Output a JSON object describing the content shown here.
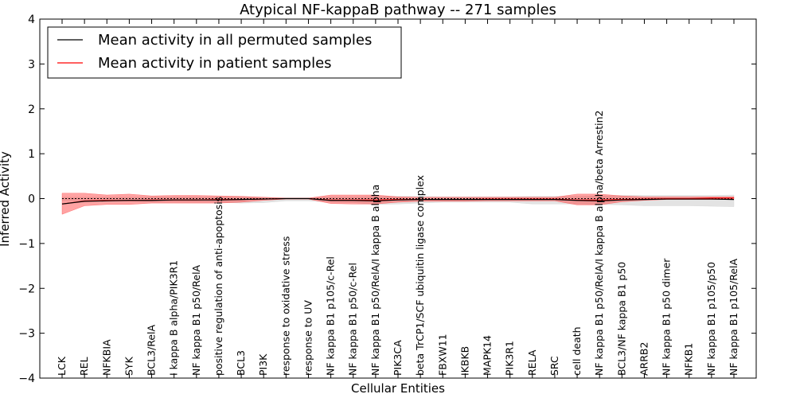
{
  "chart_data": {
    "type": "line",
    "title": "Atypical NF-kappaB pathway -- 271 samples",
    "xlabel": "Cellular Entities",
    "ylabel": "Inferred Activity",
    "ylim": [
      -4,
      4
    ],
    "yticks": [
      -4,
      -3,
      -2,
      -1,
      0,
      1,
      2,
      3,
      4
    ],
    "ytick_labels": [
      "−4",
      "−3",
      "−2",
      "−1",
      "0",
      "1",
      "2",
      "3",
      "4"
    ],
    "grid": false,
    "legend_position": "top-left",
    "categories": [
      "LCK",
      "REL",
      "NFKBIA",
      "SYK",
      "BCL3/RelA",
      "I kappa B alpha/PIK3R1",
      "NF kappa B1 p50/RelA",
      "positive regulation of anti-apoptosis",
      "BCL3",
      "PI3K",
      "response to oxidative stress",
      "response to UV",
      "NF kappa B1 p105/c-Rel",
      "NF kappa B1 p50/c-Rel",
      "NF kappa B1 p50/RelA/I kappa B alpha",
      "PIK3CA",
      "beta TrCP1/SCF ubiquitin ligase complex",
      "FBXW11",
      "IKBKB",
      "MAPK14",
      "PIK3R1",
      "RELA",
      "SRC",
      "cell death",
      "NF kappa B1 p50/RelA/I kappa B alpha/beta Arrestin2",
      "BCL3/NF kappa B1 p50",
      "ARRB2",
      "NF kappa B1 p50 dimer",
      "NFKB1",
      "NF kappa B1 p105/p50",
      "NF kappa B1 p105/RelA"
    ],
    "series": [
      {
        "name": "Mean activity in all permuted samples",
        "color": "#000000",
        "values": [
          0,
          0,
          0,
          0,
          0,
          0,
          0,
          0,
          0,
          0,
          0,
          0,
          0,
          0,
          0,
          0,
          0,
          0,
          0,
          0,
          0,
          0,
          0,
          0,
          0,
          0,
          0,
          0,
          0,
          0,
          0
        ],
        "band_upper": [
          0.03,
          0.03,
          0.03,
          0.03,
          0.04,
          0.04,
          0.04,
          0.04,
          0.04,
          0.03,
          0.02,
          0.02,
          0.04,
          0.04,
          0.05,
          0.05,
          0.05,
          0.04,
          0.04,
          0.04,
          0.04,
          0.05,
          0.05,
          0.05,
          0.06,
          0.07,
          0.07,
          0.07,
          0.07,
          0.07,
          0.08
        ],
        "band_lower": [
          -0.05,
          -0.05,
          -0.05,
          -0.06,
          -0.08,
          -0.08,
          -0.08,
          -0.08,
          -0.1,
          -0.09,
          -0.05,
          -0.05,
          -0.08,
          -0.09,
          -0.13,
          -0.12,
          -0.1,
          -0.08,
          -0.08,
          -0.08,
          -0.08,
          -0.12,
          -0.12,
          -0.12,
          -0.13,
          -0.14,
          -0.16,
          -0.16,
          -0.16,
          -0.17,
          -0.18
        ],
        "band_color": "#cccccc"
      },
      {
        "name": "Mean activity in patient samples",
        "color": "#ff0000",
        "values": [
          -0.12,
          -0.05,
          -0.04,
          -0.04,
          -0.03,
          -0.03,
          -0.03,
          -0.02,
          -0.02,
          -0.01,
          0,
          0,
          -0.03,
          -0.03,
          -0.03,
          -0.02,
          -0.02,
          -0.02,
          -0.02,
          -0.01,
          -0.01,
          -0.01,
          -0.01,
          -0.03,
          -0.03,
          -0.02,
          -0.01,
          0,
          0,
          0.01,
          0.01
        ],
        "mean_line": [
          -0.12,
          -0.06,
          -0.05,
          -0.04,
          -0.04,
          -0.03,
          -0.03,
          -0.03,
          -0.02,
          -0.01,
          0,
          0,
          -0.04,
          -0.04,
          -0.05,
          -0.03,
          -0.02,
          -0.02,
          -0.02,
          -0.02,
          -0.02,
          -0.02,
          -0.02,
          -0.04,
          -0.05,
          -0.03,
          -0.02,
          -0.01,
          -0.01,
          -0.01,
          -0.02
        ],
        "band_upper": [
          0.12,
          0.12,
          0.08,
          0.1,
          0.06,
          0.07,
          0.07,
          0.06,
          0.05,
          0.03,
          0.01,
          0.01,
          0.08,
          0.08,
          0.08,
          0.04,
          0.03,
          0.03,
          0.03,
          0.03,
          0.03,
          0.03,
          0.03,
          0.1,
          0.1,
          0.06,
          0.04,
          0.04,
          0.04,
          0.04,
          0.04
        ],
        "band_lower": [
          -0.35,
          -0.16,
          -0.13,
          -0.13,
          -0.1,
          -0.1,
          -0.1,
          -0.1,
          -0.08,
          -0.04,
          -0.01,
          -0.01,
          -0.11,
          -0.12,
          -0.12,
          -0.08,
          -0.06,
          -0.06,
          -0.06,
          -0.05,
          -0.05,
          -0.05,
          -0.05,
          -0.14,
          -0.14,
          -0.07,
          -0.04,
          -0.02,
          -0.02,
          -0.02,
          -0.02
        ],
        "band_color": "#ff3333"
      }
    ]
  }
}
